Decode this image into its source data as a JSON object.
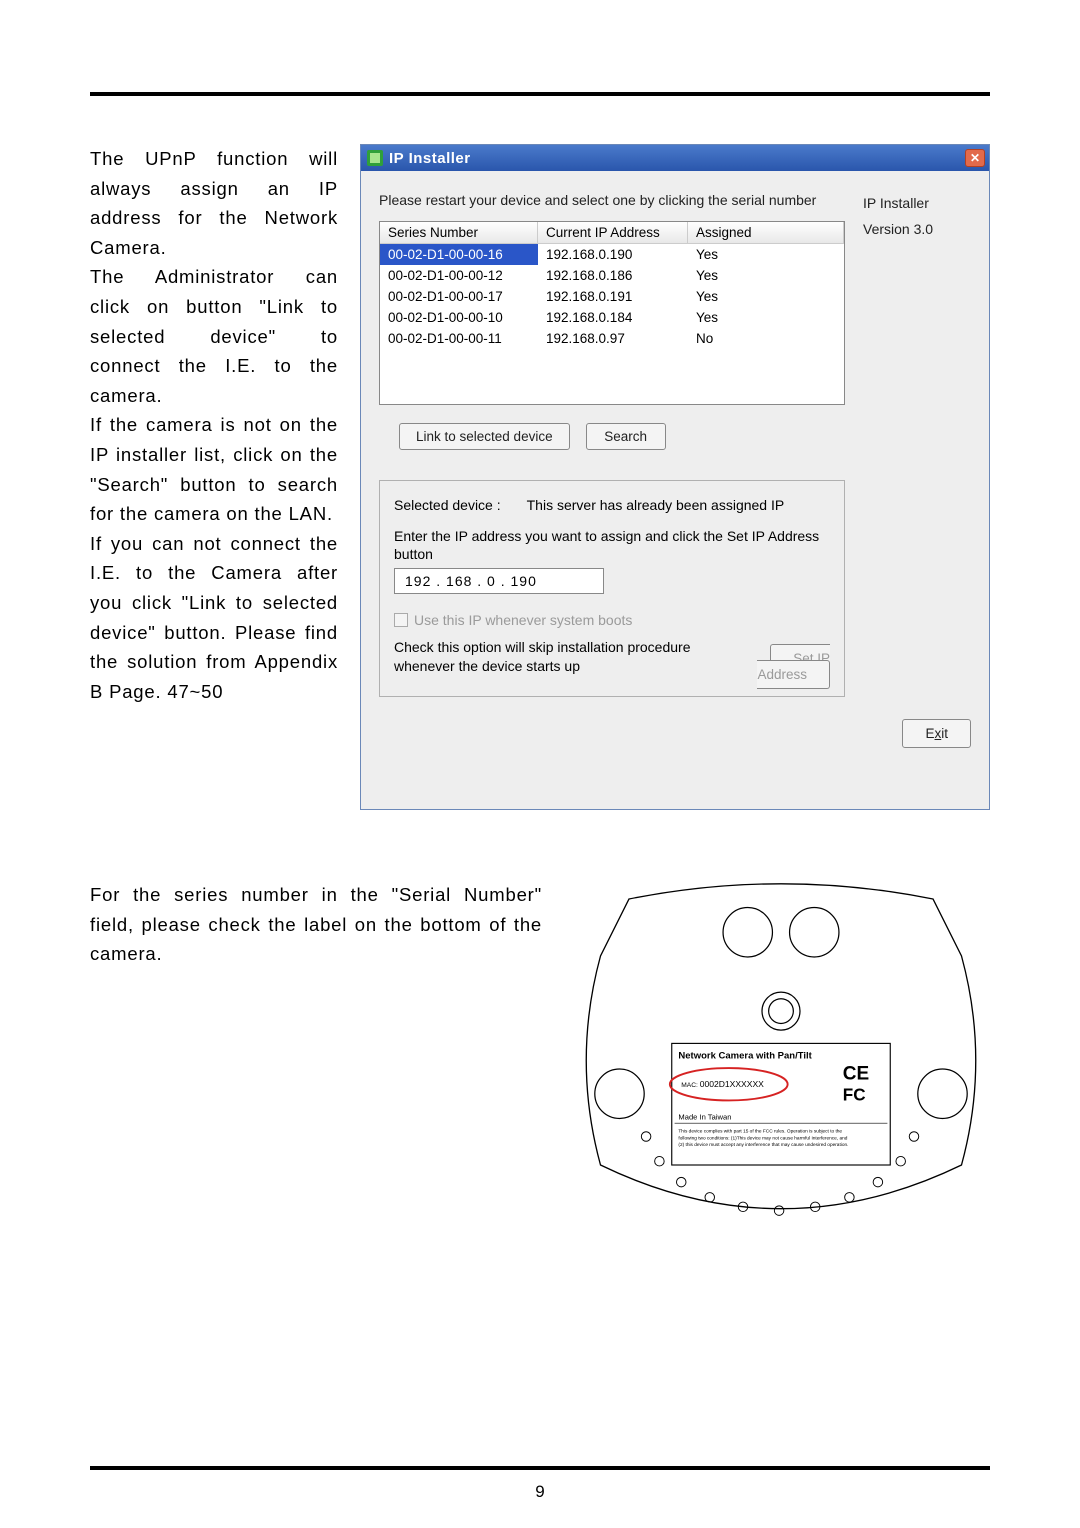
{
  "page_number": "9",
  "left_paragraphs": [
    "The UPnP function will always assign an IP address for the Network Camera.",
    "The Administrator can click on button \"Link to selected device\" to connect the I.E. to the camera.",
    "If the camera is not on the IP installer list, click on the \"Search\" button to search for the camera on the LAN.",
    "If you can not connect the I.E. to the Camera after you click \"Link to selected device\" button. Please find the solution from Appendix B Page. 47~50"
  ],
  "dialog": {
    "title": "IP Installer",
    "right_label1": "IP Installer",
    "right_label2": "Version 3.0",
    "instruction": "Please restart your device and select one by clicking the serial number",
    "columns": [
      "Series Number",
      "Current IP Address",
      "Assigned"
    ],
    "rows": [
      {
        "sn": "00-02-D1-00-00-16",
        "ip": "192.168.0.190",
        "asg": "Yes",
        "selected": true
      },
      {
        "sn": "00-02-D1-00-00-12",
        "ip": "192.168.0.186",
        "asg": "Yes",
        "selected": false
      },
      {
        "sn": "00-02-D1-00-00-17",
        "ip": "192.168.0.191",
        "asg": "Yes",
        "selected": false
      },
      {
        "sn": "00-02-D1-00-00-10",
        "ip": "192.168.0.184",
        "asg": "Yes",
        "selected": false
      },
      {
        "sn": "00-02-D1-00-00-11",
        "ip": "192.168.0.97",
        "asg": "No",
        "selected": false
      }
    ],
    "link_btn": "Link to selected device",
    "search_btn": "Search",
    "selected_label": "Selected device :",
    "selected_msg": "This server has already been assigned IP",
    "enter_ip_label": "Enter the IP address you want to assign and click the Set IP Address button",
    "ip_value": "192  .  168  .   0   .  190",
    "use_ip_label": "Use this IP whenever system boots",
    "check_note": "Check this option will skip installation procedure whenever the device starts up",
    "set_ip_btn": "Set IP Address",
    "exit_btn_pre": "E",
    "exit_btn_u": "x",
    "exit_btn_post": "it"
  },
  "serial_paragraph": "For the series number in the \"Serial Number\" field, please check the label on the bottom of the camera.",
  "label": {
    "title": "Network Camera with Pan/Tilt",
    "mac_prefix": "MAC:",
    "mac_value": "0002D1XXXXXX",
    "made_in": "Made In Taiwan",
    "fine1": "This device complies with part 15 of the FCC rules. Operation is subject to the",
    "fine2": "following two conditions: (1)This device may not cause harmful Interference, and",
    "fine3": "(2) this device must accept any interference that may cause undesired operation.",
    "colors": {
      "red": "#d62222",
      "black": "#000000",
      "grey": "#888888"
    }
  }
}
